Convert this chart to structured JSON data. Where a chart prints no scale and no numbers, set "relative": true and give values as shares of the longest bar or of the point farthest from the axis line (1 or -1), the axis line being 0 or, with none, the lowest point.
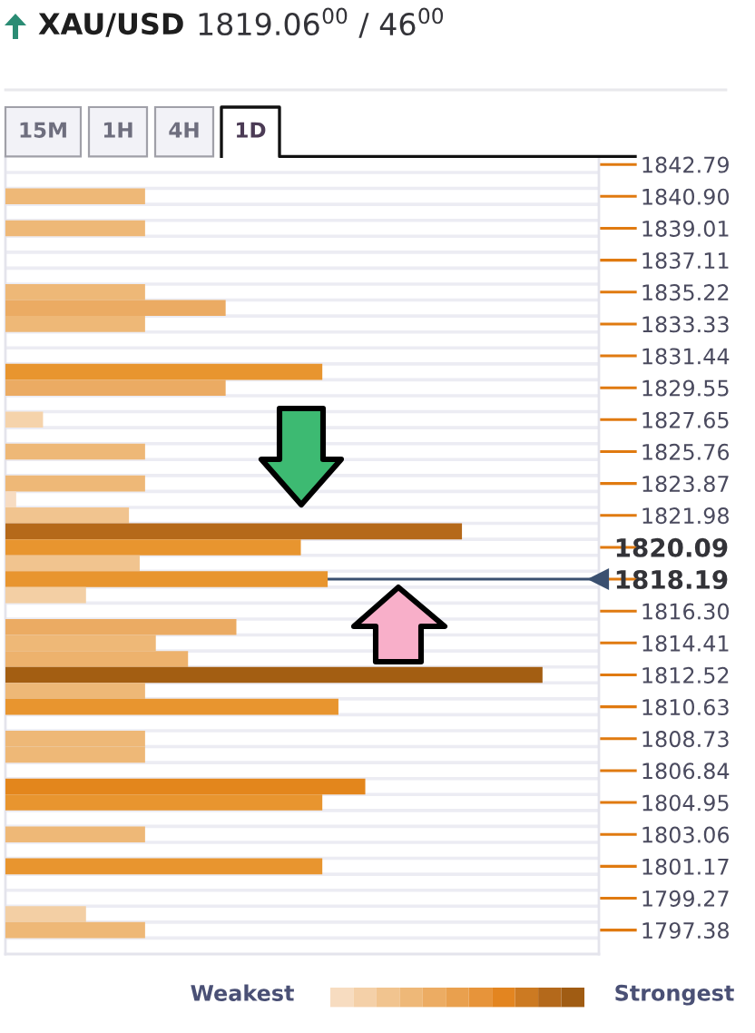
{
  "chart_data": {
    "type": "bar",
    "orientation": "horizontal",
    "relative": true,
    "title": "XAU/USD",
    "subtitle": "1819.06$^{00}$ / 46$^{00}$",
    "categories": [
      "1842.79",
      null,
      "1840.90",
      null,
      "1839.01",
      null,
      "1837.11",
      null,
      "1835.22",
      null,
      "1833.33",
      null,
      "1831.44",
      null,
      "1829.55",
      null,
      "1827.65",
      null,
      "1825.76",
      null,
      "1823.87",
      null,
      "1821.98",
      null,
      "1820.09",
      null,
      "1818.19",
      null,
      "1816.30",
      null,
      "1814.41",
      null,
      "1812.52",
      null,
      "1810.63",
      null,
      "1808.73",
      null,
      "1806.84",
      null,
      "1804.95",
      null,
      "1803.06",
      null,
      "1801.17",
      null,
      "1799.27",
      null,
      "1797.38",
      null
    ],
    "values": [
      null,
      null,
      0.26,
      null,
      0.26,
      null,
      null,
      null,
      0.26,
      0.41,
      0.26,
      null,
      null,
      0.59,
      0.41,
      null,
      0.07,
      null,
      0.26,
      null,
      0.26,
      0.02,
      0.23,
      0.85,
      0.55,
      0.25,
      0.6,
      0.15,
      null,
      0.43,
      0.28,
      0.34,
      1,
      0.26,
      0.62,
      null,
      0.26,
      0.26,
      null,
      0.67,
      0.59,
      null,
      0.26,
      null,
      0.59,
      null,
      null,
      0.15,
      0.26,
      null
    ],
    "colors": [
      null,
      null,
      "#eeb877",
      null,
      "#eeb877",
      null,
      null,
      null,
      "#eeb877",
      "#ebab63",
      "#eeb877",
      null,
      null,
      "#e8952f",
      "#ebab63",
      null,
      "#f5d3ab",
      null,
      "#eeb877",
      null,
      "#eeb877",
      "#f7dcc2",
      "#f1c48f",
      "#b5691a",
      "#e8952f",
      "#f1c48f",
      "#e8952f",
      "#f3cfa4",
      null,
      "#ebab63",
      "#eeb877",
      "#edb26d",
      "#a35e12",
      "#eeb877",
      "#e8952f",
      null,
      "#eeb877",
      "#eeb877",
      null,
      "#e3861c",
      "#e8952f",
      null,
      "#eeb877",
      null,
      "#e8952f",
      null,
      null,
      "#f3cfa4",
      "#eeb877",
      null
    ],
    "grid": "y",
    "ref_lines": [
      {
        "axis": "y",
        "value": "1818.19",
        "color": "#3a5070"
      }
    ],
    "annotations": [
      "15M",
      "1H",
      "4H",
      "1D",
      "Weakest",
      "Strongest"
    ]
  }
}
